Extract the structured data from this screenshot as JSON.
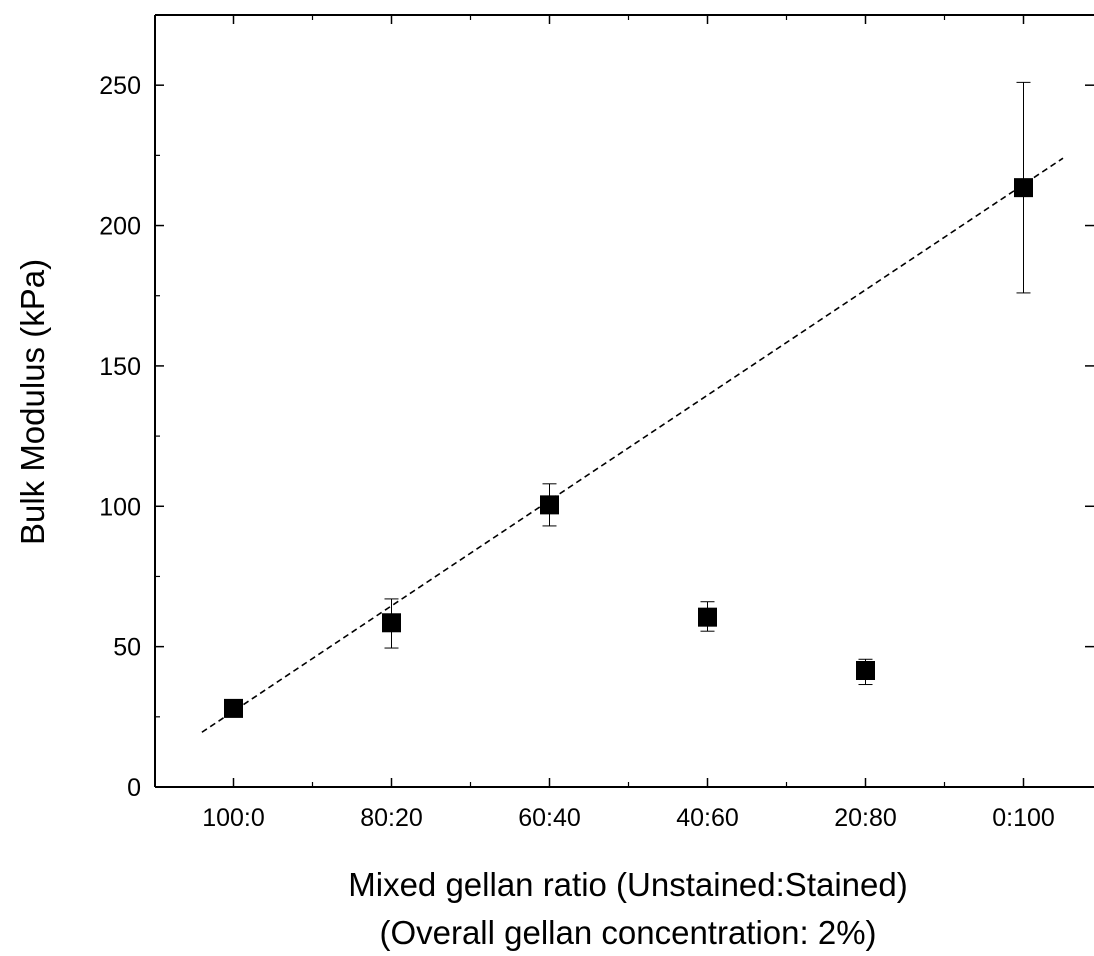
{
  "chart_data": {
    "type": "scatter",
    "title": "",
    "xlabel": "Mixed gellan ratio (Unstained:Stained)",
    "xlabel2": "(Overall gellan concentration: 2%)",
    "ylabel": "Bulk Modulus (kPa)",
    "categories": [
      "100:0",
      "80:20",
      "60:40",
      "40:60",
      "20:80",
      "0:100"
    ],
    "y_ticks": [
      "0",
      "50",
      "100",
      "150",
      "200",
      "250"
    ],
    "ylim": [
      0,
      275
    ],
    "grid": false,
    "legend": "none",
    "series": [
      {
        "marker": "filled-square",
        "color": "#000000",
        "values": [
          28,
          58.5,
          100.5,
          60.5,
          41.5,
          213.5
        ],
        "error_lower": [
          28,
          49.5,
          93,
          55.5,
          36.5,
          176
        ],
        "error_upper": [
          28,
          67,
          108,
          66,
          45.5,
          251
        ]
      }
    ],
    "trendline": {
      "style": "dashed",
      "color": "#000000",
      "x_start_category_index": -0.2,
      "x_end_category_index": 5.25,
      "y_start": 19.5,
      "y_end": 224
    }
  }
}
